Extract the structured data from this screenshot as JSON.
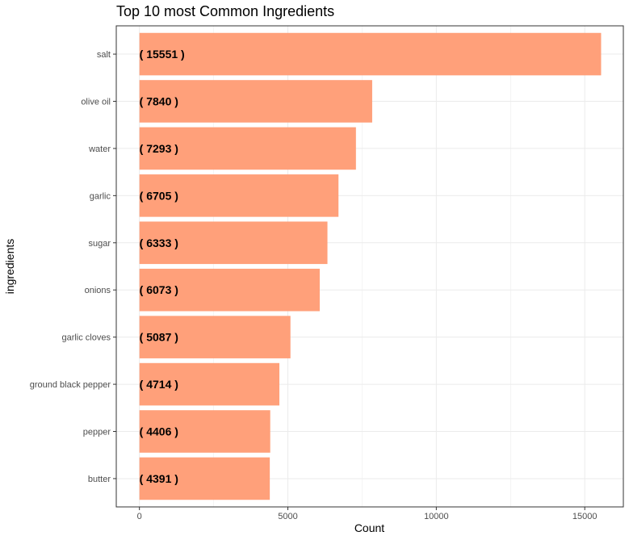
{
  "chart_data": {
    "type": "bar",
    "orientation": "horizontal",
    "title": "Top 10 most Common Ingredients",
    "xlabel": "Count",
    "ylabel": "ingredients",
    "categories": [
      "salt",
      "olive oil",
      "water",
      "garlic",
      "sugar",
      "onions",
      "garlic cloves",
      "ground black pepper",
      "pepper",
      "butter"
    ],
    "values": [
      15551,
      7840,
      7293,
      6705,
      6333,
      6073,
      5087,
      4714,
      4406,
      4391
    ],
    "data_labels": [
      "( 15551 )",
      "( 7840 )",
      "( 7293 )",
      "( 6705 )",
      "( 6333 )",
      "( 6073 )",
      "( 5087 )",
      "( 4714 )",
      "( 4406 )",
      "( 4391 )"
    ],
    "xlim": [
      -780,
      16300
    ],
    "x_ticks": [
      0,
      5000,
      10000,
      15000
    ],
    "x_tick_labels": [
      "0",
      "5000",
      "10000",
      "15000"
    ],
    "grid": true,
    "bar_color": "#FFA07A",
    "grid_color": "#ebebeb",
    "panel_border_color": "#333333"
  }
}
